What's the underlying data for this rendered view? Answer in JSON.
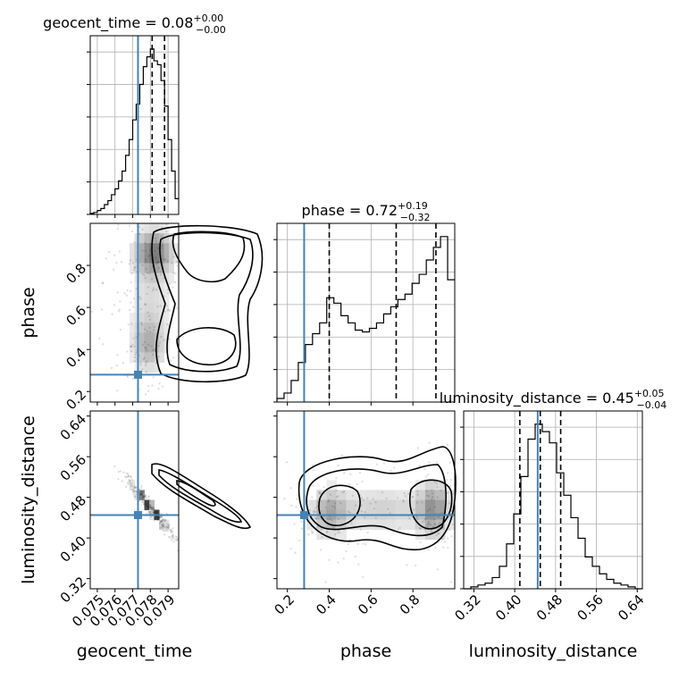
{
  "chart_data": {
    "type": "corner",
    "parameters": [
      "geocent_time",
      "phase",
      "luminosity_distance"
    ],
    "truths": {
      "geocent_time": 0.0773,
      "phase": 0.28,
      "luminosity_distance": 0.445
    },
    "titles": [
      {
        "param": "geocent_time",
        "text": "geocent_time = 0.08",
        "sup": "+0.00",
        "sub": "−0.00"
      },
      {
        "param": "phase",
        "text": "phase = 0.72",
        "sup": "+0.19",
        "sub": "−0.32"
      },
      {
        "param": "luminosity_distance",
        "text": "luminosity_distance = 0.45",
        "sup": "+0.05",
        "sub": "−0.04"
      }
    ],
    "axes": {
      "geocent_time": {
        "range": [
          0.0746,
          0.0796
        ],
        "ticks": [
          0.075,
          0.076,
          0.077,
          0.078,
          0.079
        ],
        "tick_labels": [
          "0.075",
          "0.076",
          "0.077",
          "0.078",
          "0.079"
        ]
      },
      "phase": {
        "range": [
          0.15,
          1.0
        ],
        "ticks": [
          0.2,
          0.4,
          0.6,
          0.8
        ],
        "tick_labels": [
          "0.2",
          "0.4",
          "0.6",
          "0.8"
        ]
      },
      "luminosity_distance": {
        "range": [
          0.3,
          0.65
        ],
        "ticks": [
          0.32,
          0.4,
          0.48,
          0.56,
          0.64
        ],
        "tick_labels": [
          "0.32",
          "0.40",
          "0.48",
          "0.56",
          "0.64"
        ]
      }
    },
    "marginals": {
      "geocent_time": {
        "quantiles": [
          0.0773,
          0.0781,
          0.0788
        ],
        "edges": [
          0.0746,
          0.0748,
          0.075,
          0.0752,
          0.0754,
          0.0756,
          0.0758,
          0.076,
          0.0762,
          0.0764,
          0.0766,
          0.0768,
          0.077,
          0.0772,
          0.0774,
          0.0776,
          0.0778,
          0.078,
          0.0782,
          0.0784,
          0.0786,
          0.0788,
          0.079,
          0.0792,
          0.0794,
          0.0796
        ],
        "counts": [
          0.5,
          1,
          2,
          3,
          5,
          7,
          10,
          13,
          17,
          22,
          30,
          38,
          48,
          56,
          66,
          75,
          80,
          84,
          78,
          76,
          68,
          55,
          38,
          22,
          8
        ]
      },
      "phase": {
        "quantiles": [
          0.4,
          0.72,
          0.91
        ],
        "edges": [
          0.15,
          0.184,
          0.218,
          0.252,
          0.286,
          0.32,
          0.354,
          0.388,
          0.422,
          0.456,
          0.49,
          0.524,
          0.558,
          0.592,
          0.626,
          0.66,
          0.694,
          0.728,
          0.762,
          0.796,
          0.83,
          0.864,
          0.898,
          0.932,
          0.966,
          1.0
        ],
        "counts": [
          2,
          5,
          12,
          22,
          32,
          38,
          44,
          58,
          55,
          48,
          44,
          40,
          39,
          41,
          44,
          49,
          53,
          57,
          60,
          66,
          71,
          79,
          86,
          92,
          68
        ]
      },
      "luminosity_distance": {
        "quantiles": [
          0.41,
          0.45,
          0.49
        ],
        "edges": [
          0.3,
          0.314,
          0.328,
          0.342,
          0.356,
          0.37,
          0.384,
          0.398,
          0.412,
          0.426,
          0.44,
          0.454,
          0.468,
          0.482,
          0.496,
          0.51,
          0.524,
          0.538,
          0.552,
          0.566,
          0.58,
          0.594,
          0.608,
          0.622,
          0.636,
          0.65
        ],
        "counts": [
          0,
          1,
          2,
          3,
          6,
          12,
          24,
          40,
          60,
          80,
          88,
          84,
          78,
          62,
          50,
          38,
          27,
          17,
          12,
          8,
          5,
          3,
          2,
          1,
          0
        ]
      }
    },
    "joint": [
      {
        "x": "geocent_time",
        "y": "phase"
      },
      {
        "x": "geocent_time",
        "y": "luminosity_distance"
      },
      {
        "x": "phase",
        "y": "luminosity_distance"
      }
    ]
  }
}
